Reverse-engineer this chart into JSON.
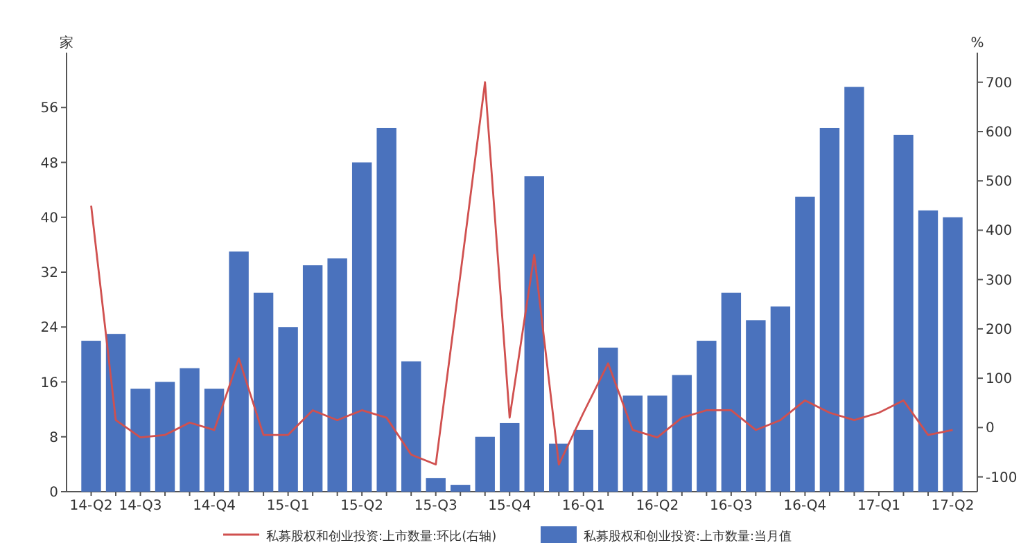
{
  "chart_data": {
    "type": "bar",
    "ylabel": "家",
    "y2label": "%",
    "categories": [
      "14-Q2",
      null,
      "14-Q3",
      null,
      null,
      "14-Q4",
      null,
      null,
      "15-Q1",
      null,
      null,
      "15-Q2",
      null,
      null,
      "15-Q3",
      null,
      null,
      "15-Q4",
      null,
      null,
      "16-Q1",
      null,
      null,
      "16-Q2",
      null,
      null,
      "16-Q3",
      null,
      null,
      "16-Q4",
      null,
      null,
      "17-Q1",
      null,
      null,
      "17-Q2"
    ],
    "series": [
      {
        "name": "私募股权和创业投资:上市数量:环比(右轴)",
        "type": "line",
        "axis": "y2",
        "color": "#d0504f",
        "values": [
          450,
          15,
          -20,
          -15,
          10,
          -5,
          140,
          -15,
          -15,
          35,
          15,
          35,
          20,
          -55,
          -75,
          310,
          700,
          20,
          350,
          -75,
          30,
          130,
          -5,
          -20,
          20,
          35,
          35,
          -5,
          15,
          55,
          30,
          15,
          30,
          55,
          -15,
          -5
        ]
      },
      {
        "name": "私募股权和创业投资:上市数量:当月值",
        "type": "bar",
        "color": "#4a72bd",
        "values": [
          22,
          23,
          15,
          16,
          18,
          15,
          35,
          29,
          24,
          33,
          34,
          48,
          53,
          19,
          2,
          1,
          8,
          10,
          46,
          7,
          9,
          21,
          14,
          14,
          17,
          22,
          29,
          25,
          27,
          43,
          53,
          59,
          null,
          52,
          41,
          40
        ]
      }
    ],
    "ylim": [
      0,
      64
    ],
    "yticks": [
      0,
      8,
      16,
      24,
      32,
      40,
      48,
      56
    ],
    "y2lim": [
      -130,
      760
    ],
    "y2ticks": [
      -100,
      0,
      100,
      200,
      300,
      400,
      500,
      600,
      700
    ],
    "legend": "bottom"
  }
}
